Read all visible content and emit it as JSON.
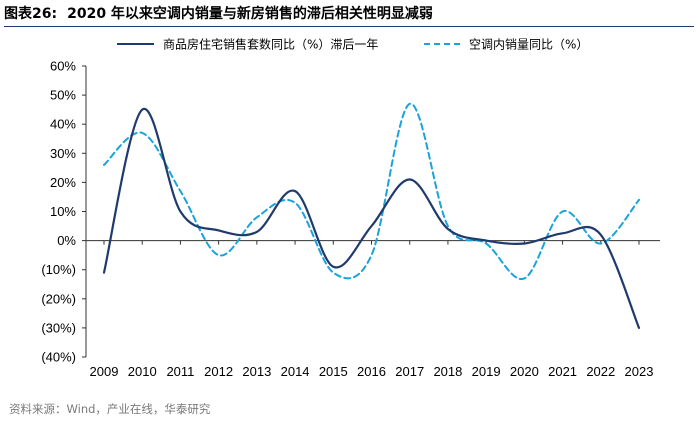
{
  "figure": {
    "number": "图表26:",
    "title": "2020 年以来空调内销量与新房销售的滞后相关性明显减弱",
    "source": "资料来源：Wind，产业在线，华泰研究"
  },
  "chart_data": {
    "type": "line",
    "title": "",
    "xlabel": "",
    "ylabel": "",
    "x": [
      "2009",
      "2010",
      "2011",
      "2012",
      "2013",
      "2014",
      "2015",
      "2016",
      "2017",
      "2018",
      "2019",
      "2020",
      "2021",
      "2022",
      "2023"
    ],
    "ylim": [
      -40,
      60
    ],
    "yticks": [
      60,
      50,
      40,
      30,
      20,
      10,
      0,
      -10,
      -20,
      -30,
      -40
    ],
    "ytick_labels": [
      "60%",
      "50%",
      "40%",
      "30%",
      "20%",
      "10%",
      "0%",
      "(10%)",
      "(20%)",
      "(30%)",
      "(40%)"
    ],
    "grid": false,
    "legend_position": "top",
    "series": [
      {
        "name": "商品房住宅销售套数同比（%）滞后一年",
        "color": "#1f3a6d",
        "style": "solid",
        "values": [
          -11,
          45,
          10,
          3.5,
          3,
          17,
          -9,
          5,
          21,
          4,
          0,
          -1,
          2.5,
          2,
          -30
        ]
      },
      {
        "name": "空调内销量同比（%）",
        "color": "#1aa3d9",
        "style": "dashed",
        "values": [
          26,
          37,
          17,
          -5,
          8,
          13,
          -11,
          -5,
          47,
          5,
          -1,
          -13,
          10,
          -1,
          14
        ]
      }
    ]
  }
}
